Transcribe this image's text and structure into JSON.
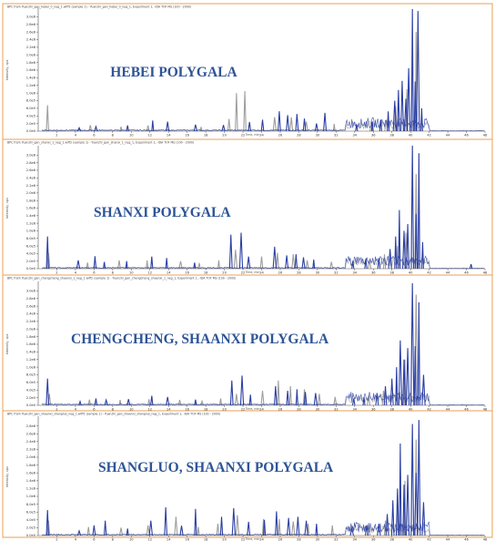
{
  "colors": {
    "frame": "#e8a155",
    "series_blue": "#2b3fa3",
    "series_gray": "#9e9e9e",
    "label": "#2e5496",
    "axis": "#555555"
  },
  "chart_data": [
    {
      "type": "line",
      "header": "BPC from Yuanzhi_gan_hebei_0_neg_1.wiff2 (sample 1) - Yuanzhi_gan_hebei_0_neg_1, Experiment 1, -IDA TOF MS (100 - 2000)",
      "sample_label": "HEBEI POLYGALA",
      "xlabel": "Time, min",
      "ylabel": "Intensity, cps",
      "xlim": [
        0,
        48
      ],
      "ylim": [
        0,
        3200000
      ],
      "xticks": [
        "2",
        "4",
        "6",
        "8",
        "10",
        "12",
        "14",
        "16",
        "18",
        "20",
        "22",
        "24",
        "26",
        "28",
        "30",
        "32",
        "34",
        "36",
        "38",
        "40",
        "42",
        "44",
        "46",
        "48"
      ],
      "yticks": [
        "0.0e0",
        "2.0e5",
        "4.0e5",
        "6.0e5",
        "8.0e5",
        "1.0e6",
        "1.2e6",
        "1.4e6",
        "1.6e6",
        "1.8e6",
        "2.0e6",
        "2.2e6",
        "2.4e6",
        "2.6e6",
        "2.8e6",
        "3.0e6"
      ],
      "series": [
        {
          "color": "gray",
          "peaks": [
            [
              1.0,
              680000
            ],
            [
              5.6,
              160000
            ],
            [
              8.9,
              120000
            ],
            [
              11.8,
              150000
            ],
            [
              17.5,
              110000
            ],
            [
              20.5,
              320000
            ],
            [
              21.3,
              1000000
            ],
            [
              22.2,
              1050000
            ],
            [
              25.4,
              370000
            ],
            [
              27.2,
              360000
            ],
            [
              28.8,
              250000
            ],
            [
              31.8,
              190000
            ],
            [
              35.8,
              240000
            ],
            [
              37.4,
              300000
            ],
            [
              38.4,
              650000
            ],
            [
              39.6,
              1100000
            ],
            [
              40.6,
              2600000
            ]
          ]
        },
        {
          "color": "blue",
          "peaks": [
            [
              4.4,
              90000
            ],
            [
              6.2,
              120000
            ],
            [
              9.6,
              150000
            ],
            [
              12.3,
              280000
            ],
            [
              13.9,
              250000
            ],
            [
              16.9,
              170000
            ],
            [
              19.9,
              160000
            ],
            [
              22.7,
              240000
            ],
            [
              24.1,
              300000
            ],
            [
              25.9,
              520000
            ],
            [
              26.8,
              420000
            ],
            [
              27.8,
              450000
            ],
            [
              28.6,
              330000
            ],
            [
              29.9,
              200000
            ],
            [
              30.8,
              480000
            ],
            [
              34.2,
              180000
            ],
            [
              35.9,
              240000
            ],
            [
              36.8,
              300000
            ],
            [
              37.6,
              520000
            ],
            [
              38.3,
              800000
            ],
            [
              38.7,
              1080000
            ],
            [
              39.1,
              1320000
            ],
            [
              39.5,
              850000
            ],
            [
              39.8,
              1650000
            ],
            [
              40.2,
              3200000
            ],
            [
              40.5,
              1300000
            ],
            [
              40.8,
              3150000
            ],
            [
              41.2,
              600000
            ]
          ]
        }
      ]
    },
    {
      "type": "line",
      "header": "BPC from Yuanzhi_gan_shanxi_1_neg_1.wiff2 (sample 1) - Yuanzhi_gan_shanxi_1_neg_1, Experiment 1, -IDA TOF MS (100 - 2000)",
      "sample_label": "SHANXI POLYGALA",
      "xlabel": "Time, min",
      "ylabel": "Intensity, cps",
      "xlim": [
        0,
        48
      ],
      "ylim": [
        0,
        3200000
      ],
      "xticks": [
        "2",
        "4",
        "6",
        "8",
        "10",
        "12",
        "14",
        "16",
        "18",
        "20",
        "22",
        "24",
        "26",
        "28",
        "30",
        "32",
        "34",
        "36",
        "38",
        "40",
        "42",
        "44",
        "46",
        "48"
      ],
      "yticks": [
        "0.0e0",
        "2.0e5",
        "4.0e5",
        "6.0e5",
        "8.0e5",
        "1.0e6",
        "1.2e6",
        "1.4e6",
        "1.6e6",
        "1.8e6",
        "2.0e6",
        "2.2e6",
        "2.4e6",
        "2.6e6",
        "2.8e6",
        "3.0e6"
      ],
      "series": [
        {
          "color": "gray",
          "peaks": [
            [
              1.1,
              420000
            ],
            [
              5.3,
              160000
            ],
            [
              8.7,
              220000
            ],
            [
              11.7,
              220000
            ],
            [
              15.3,
              200000
            ],
            [
              17.3,
              150000
            ],
            [
              19.4,
              220000
            ],
            [
              21.2,
              500000
            ],
            [
              24.0,
              320000
            ],
            [
              25.7,
              420000
            ],
            [
              27.4,
              380000
            ],
            [
              28.9,
              220000
            ],
            [
              31.5,
              180000
            ],
            [
              35.6,
              240000
            ],
            [
              37.2,
              380000
            ],
            [
              38.6,
              600000
            ],
            [
              39.5,
              950000
            ],
            [
              40.6,
              2500000
            ]
          ]
        },
        {
          "color": "blue",
          "peaks": [
            [
              1.0,
              850000
            ],
            [
              4.3,
              220000
            ],
            [
              6.1,
              330000
            ],
            [
              7.1,
              180000
            ],
            [
              9.5,
              200000
            ],
            [
              12.2,
              320000
            ],
            [
              13.8,
              280000
            ],
            [
              16.8,
              160000
            ],
            [
              20.7,
              900000
            ],
            [
              21.8,
              950000
            ],
            [
              22.6,
              320000
            ],
            [
              25.4,
              580000
            ],
            [
              26.7,
              350000
            ],
            [
              27.7,
              380000
            ],
            [
              28.5,
              300000
            ],
            [
              29.6,
              240000
            ],
            [
              33.8,
              200000
            ],
            [
              35.2,
              260000
            ],
            [
              36.6,
              280000
            ],
            [
              37.8,
              520000
            ],
            [
              38.4,
              850000
            ],
            [
              38.8,
              1550000
            ],
            [
              39.3,
              1000000
            ],
            [
              39.7,
              1180000
            ],
            [
              40.2,
              3250000
            ],
            [
              40.6,
              1450000
            ],
            [
              40.9,
              3050000
            ],
            [
              41.3,
              700000
            ],
            [
              46.5,
              120000
            ]
          ]
        }
      ]
    },
    {
      "type": "line",
      "header": "BPC from Yuanzhi_gan_chengcheng_shaanxi_1_neg_1.wiff2 (sample 1) - Yuanzhi_gan_chengcheng_shaanxi_1_neg_1, Experiment 1, -IDA TOF MS (100 - 2000)",
      "sample_label": "CHENGCHENG, SHAANXI POLYGALA",
      "xlabel": "Time, min",
      "ylabel": "Intensity, cps",
      "xlim": [
        0,
        48
      ],
      "ylim": [
        0,
        3200000
      ],
      "xticks": [
        "2",
        "4",
        "6",
        "8",
        "10",
        "12",
        "14",
        "16",
        "18",
        "20",
        "22",
        "24",
        "26",
        "28",
        "30",
        "32",
        "34",
        "36",
        "38",
        "40",
        "42",
        "44",
        "46",
        "48"
      ],
      "yticks": [
        "0.0e0",
        "2.0e5",
        "4.0e5",
        "6.0e5",
        "8.0e5",
        "1.0e6",
        "1.2e6",
        "1.4e6",
        "1.6e6",
        "1.8e6",
        "2.0e6",
        "2.2e6",
        "2.4e6",
        "2.6e6",
        "2.8e6",
        "3.0e6"
      ],
      "series": [
        {
          "color": "gray",
          "peaks": [
            [
              1.2,
              300000
            ],
            [
              5.5,
              150000
            ],
            [
              8.8,
              140000
            ],
            [
              11.9,
              160000
            ],
            [
              15.2,
              140000
            ],
            [
              17.6,
              110000
            ],
            [
              19.6,
              180000
            ],
            [
              21.3,
              300000
            ],
            [
              24.1,
              380000
            ],
            [
              25.8,
              650000
            ],
            [
              27.1,
              500000
            ],
            [
              28.6,
              420000
            ],
            [
              30.2,
              300000
            ],
            [
              31.9,
              220000
            ],
            [
              35.5,
              260000
            ],
            [
              37.1,
              380000
            ],
            [
              38.5,
              700000
            ],
            [
              39.4,
              1200000
            ],
            [
              40.6,
              2900000
            ]
          ]
        },
        {
          "color": "blue",
          "peaks": [
            [
              1.0,
              700000
            ],
            [
              4.5,
              100000
            ],
            [
              6.2,
              180000
            ],
            [
              7.3,
              140000
            ],
            [
              9.7,
              160000
            ],
            [
              12.2,
              250000
            ],
            [
              13.9,
              220000
            ],
            [
              16.9,
              150000
            ],
            [
              20.8,
              650000
            ],
            [
              21.9,
              780000
            ],
            [
              22.8,
              280000
            ],
            [
              25.5,
              500000
            ],
            [
              26.8,
              380000
            ],
            [
              27.8,
              420000
            ],
            [
              28.7,
              350000
            ],
            [
              29.8,
              320000
            ],
            [
              33.9,
              180000
            ],
            [
              35.0,
              220000
            ],
            [
              36.4,
              320000
            ],
            [
              37.3,
              500000
            ],
            [
              38.0,
              700000
            ],
            [
              38.5,
              1000000
            ],
            [
              38.9,
              1700000
            ],
            [
              39.3,
              1200000
            ],
            [
              39.7,
              1500000
            ],
            [
              40.2,
              3200000
            ],
            [
              40.5,
              1550000
            ],
            [
              40.9,
              2700000
            ],
            [
              41.4,
              800000
            ]
          ]
        }
      ]
    },
    {
      "type": "line",
      "header": "BPC from Yuanzhi_gan_shaanxi_shangluo_neg_1.wiff2 (sample 1) - Yuanzhi_gan_shaanxi_shangluo_neg_1, Experiment 1, -IDA TOF MS (100 - 2000)",
      "sample_label": "SHANGLUO, SHAANXI POLYGALA",
      "xlabel": "Time, min",
      "ylabel": "Intensity, cps",
      "xlim": [
        0,
        48
      ],
      "ylim": [
        0,
        3000000
      ],
      "xticks": [
        "2",
        "4",
        "6",
        "8",
        "10",
        "12",
        "14",
        "16",
        "18",
        "20",
        "22",
        "24",
        "26",
        "28",
        "30",
        "32",
        "34",
        "36",
        "38",
        "40",
        "42",
        "44",
        "46",
        "48"
      ],
      "yticks": [
        "0.0e0",
        "2.0e5",
        "4.0e5",
        "6.0e5",
        "8.0e5",
        "1.0e6",
        "1.2e6",
        "1.4e6",
        "1.6e6",
        "1.8e6",
        "2.0e6",
        "2.2e6",
        "2.4e6",
        "2.6e6",
        "2.8e6"
      ],
      "series": [
        {
          "color": "gray",
          "peaks": [
            [
              1.1,
              380000
            ],
            [
              5.4,
              220000
            ],
            [
              8.9,
              200000
            ],
            [
              11.8,
              260000
            ],
            [
              14.8,
              480000
            ],
            [
              17.2,
              220000
            ],
            [
              19.3,
              300000
            ],
            [
              21.4,
              520000
            ],
            [
              24.2,
              420000
            ],
            [
              25.9,
              420000
            ],
            [
              27.4,
              360000
            ],
            [
              29.0,
              300000
            ],
            [
              31.6,
              260000
            ],
            [
              35.5,
              260000
            ],
            [
              37.3,
              380000
            ],
            [
              38.6,
              700000
            ],
            [
              39.4,
              1400000
            ],
            [
              40.6,
              2450000
            ]
          ]
        },
        {
          "color": "blue",
          "peaks": [
            [
              1.0,
              650000
            ],
            [
              4.4,
              120000
            ],
            [
              6.0,
              260000
            ],
            [
              7.2,
              380000
            ],
            [
              9.6,
              180000
            ],
            [
              12.1,
              380000
            ],
            [
              13.7,
              720000
            ],
            [
              15.4,
              250000
            ],
            [
              16.9,
              680000
            ],
            [
              19.7,
              480000
            ],
            [
              21.0,
              700000
            ],
            [
              22.6,
              350000
            ],
            [
              24.3,
              400000
            ],
            [
              25.6,
              620000
            ],
            [
              26.9,
              450000
            ],
            [
              27.9,
              480000
            ],
            [
              28.8,
              380000
            ],
            [
              29.9,
              300000
            ],
            [
              33.7,
              200000
            ],
            [
              35.3,
              260000
            ],
            [
              36.6,
              300000
            ],
            [
              37.5,
              550000
            ],
            [
              38.1,
              900000
            ],
            [
              38.6,
              1200000
            ],
            [
              38.9,
              2350000
            ],
            [
              39.3,
              1300000
            ],
            [
              39.7,
              1550000
            ],
            [
              40.2,
              2850000
            ],
            [
              40.6,
              1600000
            ],
            [
              40.9,
              2950000
            ],
            [
              41.4,
              850000
            ]
          ]
        }
      ]
    }
  ]
}
